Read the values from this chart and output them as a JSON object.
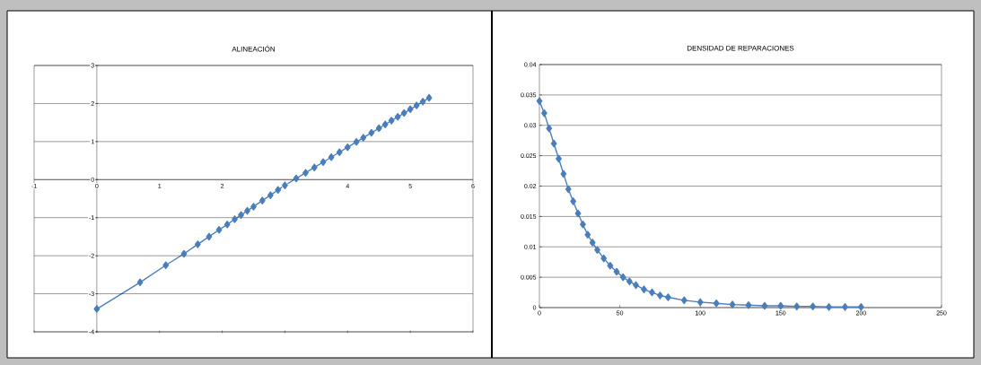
{
  "chart_data": [
    {
      "type": "line",
      "title": "ALINEACIÓN",
      "xlim": [
        -1,
        6
      ],
      "ylim": [
        -4,
        3
      ],
      "xticks": [
        -1,
        0,
        1,
        2,
        3,
        4,
        5,
        6
      ],
      "yticks": [
        -4,
        -3,
        -2,
        -1,
        0,
        1,
        2,
        3
      ],
      "grid": "y",
      "marker": "diamond",
      "line_style": "solid",
      "series": [
        {
          "color": "#4a7ebb",
          "x": [
            0,
            0.69,
            1.1,
            1.39,
            1.61,
            1.79,
            1.95,
            2.08,
            2.2,
            2.3,
            2.4,
            2.5,
            2.64,
            2.77,
            2.89,
            3.0,
            3.18,
            3.33,
            3.47,
            3.61,
            3.74,
            3.87,
            4.0,
            4.14,
            4.25,
            4.38,
            4.5,
            4.6,
            4.7,
            4.8,
            4.9,
            5.0,
            5.1,
            5.2,
            5.3
          ],
          "values": [
            -3.4,
            -2.7,
            -2.25,
            -1.95,
            -1.7,
            -1.5,
            -1.32,
            -1.18,
            -1.04,
            -0.93,
            -0.82,
            -0.71,
            -0.55,
            -0.41,
            -0.27,
            -0.15,
            0.03,
            0.18,
            0.32,
            0.46,
            0.59,
            0.72,
            0.85,
            0.99,
            1.1,
            1.23,
            1.35,
            1.45,
            1.55,
            1.65,
            1.75,
            1.85,
            1.95,
            2.05,
            2.15
          ]
        }
      ]
    },
    {
      "type": "line",
      "title": "DENSIDAD  DE REPARACIONES",
      "xlim": [
        0,
        250
      ],
      "ylim": [
        0,
        0.04
      ],
      "xticks": [
        0,
        50,
        100,
        150,
        200,
        250
      ],
      "yticks": [
        0,
        0.005,
        0.01,
        0.015,
        0.02,
        0.025,
        0.03,
        0.035,
        0.04
      ],
      "grid": "y",
      "marker": "diamond",
      "line_style": "solid",
      "series": [
        {
          "color": "#4a7ebb",
          "x": [
            0,
            3,
            6,
            9,
            12,
            15,
            18,
            21,
            24,
            27,
            30,
            33,
            36,
            40,
            44,
            48,
            52,
            56,
            60,
            65,
            70,
            75,
            80,
            90,
            100,
            110,
            120,
            130,
            140,
            150,
            160,
            170,
            180,
            190,
            200
          ],
          "values": [
            0.034,
            0.032,
            0.0295,
            0.027,
            0.0245,
            0.022,
            0.0195,
            0.0175,
            0.0155,
            0.0137,
            0.012,
            0.0107,
            0.0095,
            0.0081,
            0.0069,
            0.0059,
            0.005,
            0.0043,
            0.0037,
            0.003,
            0.0025,
            0.002,
            0.0017,
            0.0012,
            0.0009,
            0.0007,
            0.0005,
            0.0004,
            0.0003,
            0.0003,
            0.0002,
            0.0002,
            0.0001,
            0.0001,
            0.0001
          ]
        }
      ]
    }
  ]
}
